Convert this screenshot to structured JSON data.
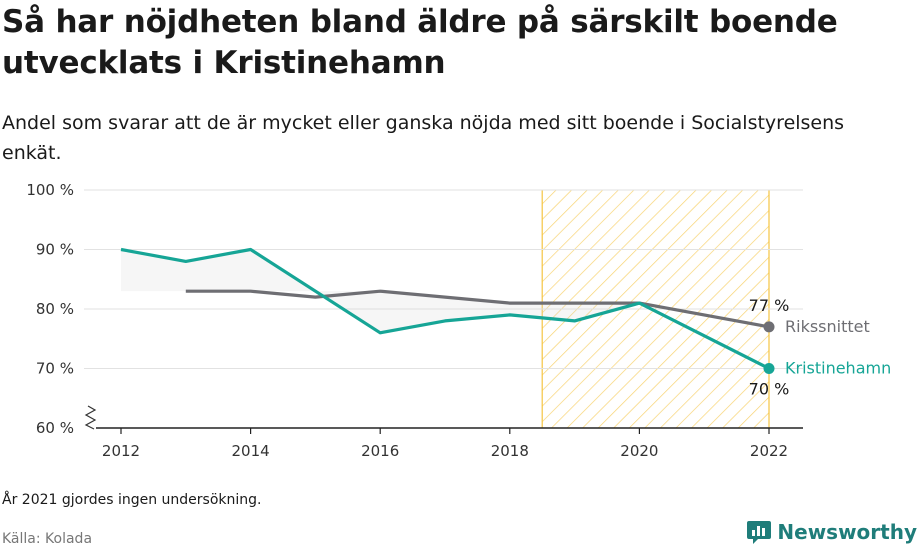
{
  "header": {
    "title": "Så har nöjdheten bland äldre på särskilt boende utvecklats i Kristinehamn",
    "subtitle": "Andel som svarar att de är mycket eller ganska nöjda med sitt boende i Socialstyrelsens enkät."
  },
  "footer": {
    "note": "År 2021 gjordes ingen undersökning.",
    "source": "Källa: Kolada",
    "brand": "Newsworthy"
  },
  "colors": {
    "kristinehamn": "#16a596",
    "riket": "#6e6e73",
    "highlight": "#f5c542",
    "grid": "#e2e2e2"
  },
  "chart_data": {
    "type": "line",
    "x": [
      2012,
      2013,
      2014,
      2015,
      2016,
      2017,
      2018,
      2019,
      2020,
      2022
    ],
    "xticks": [
      "2012",
      "2014",
      "2016",
      "2018",
      "2020",
      "2022"
    ],
    "yticks": [
      "60 %",
      "70 %",
      "80 %",
      "90 %",
      "100 %"
    ],
    "ylim": [
      60,
      100
    ],
    "xlim": [
      2012,
      2022
    ],
    "highlight_range": [
      2018.5,
      2022
    ],
    "broken_y_axis": true,
    "series": [
      {
        "name": "Kristinehamn",
        "color_key": "kristinehamn",
        "points": [
          [
            2012,
            90
          ],
          [
            2013,
            88
          ],
          [
            2014,
            90
          ],
          [
            2016,
            76
          ],
          [
            2017,
            78
          ],
          [
            2018,
            79
          ],
          [
            2019,
            78
          ],
          [
            2020,
            81
          ],
          [
            2022,
            70
          ]
        ],
        "end_label": "70 %"
      },
      {
        "name": "Rikssnittet",
        "color_key": "riket",
        "points": [
          [
            2013,
            83
          ],
          [
            2014,
            83
          ],
          [
            2015,
            82
          ],
          [
            2016,
            83
          ],
          [
            2017,
            82
          ],
          [
            2018,
            81
          ],
          [
            2019,
            81
          ],
          [
            2020,
            81
          ],
          [
            2022,
            77
          ]
        ],
        "end_label": "77 %"
      }
    ]
  }
}
